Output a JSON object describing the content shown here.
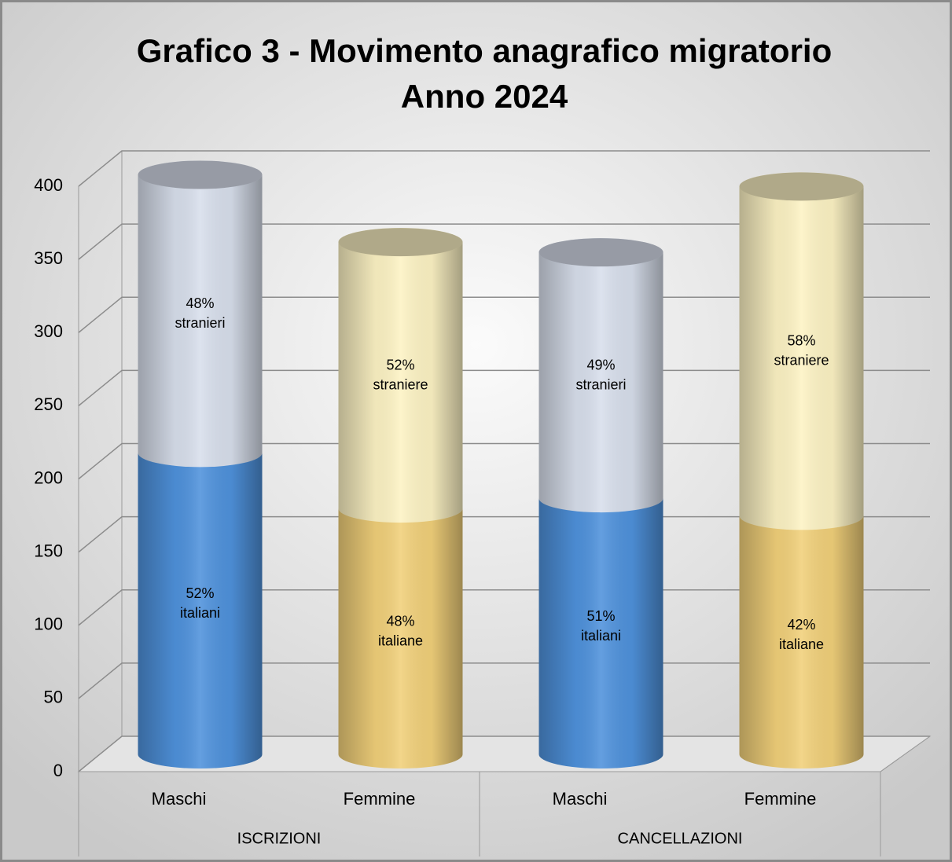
{
  "chart_data": {
    "type": "bar",
    "stacked": true,
    "shape": "cylinder",
    "title": [
      "Grafico 3 - Movimento anagrafico migratorio",
      "Anno 2024"
    ],
    "groups": [
      "ISCRIZIONI",
      "CANCELLAZIONI"
    ],
    "categories": [
      "Maschi",
      "Femmine",
      "Maschi",
      "Femmine"
    ],
    "series": [
      {
        "colors": [
          "#4f92dc",
          "#f1d07a",
          "#4f92dc",
          "#f1d07a"
        ],
        "values": [
          206,
          168,
          175,
          163
        ],
        "segment_labels": [
          [
            "52%",
            "italiani"
          ],
          [
            "48%",
            "italiane"
          ],
          [
            "51%",
            "italiani"
          ],
          [
            "42%",
            "italiane"
          ]
        ]
      },
      {
        "colors": [
          "#d8dfec",
          "#fdf3c4",
          "#d8dfec",
          "#fdf3c4"
        ],
        "values": [
          190,
          182,
          168,
          225
        ],
        "segment_labels": [
          [
            "48%",
            "stranieri"
          ],
          [
            "52%",
            "straniere"
          ],
          [
            "49%",
            "stranieri"
          ],
          [
            "58%",
            "straniere"
          ]
        ]
      }
    ],
    "ylim": [
      0,
      400
    ],
    "yticks": [
      0,
      50,
      100,
      150,
      200,
      250,
      300,
      350,
      400
    ],
    "grid": true
  }
}
